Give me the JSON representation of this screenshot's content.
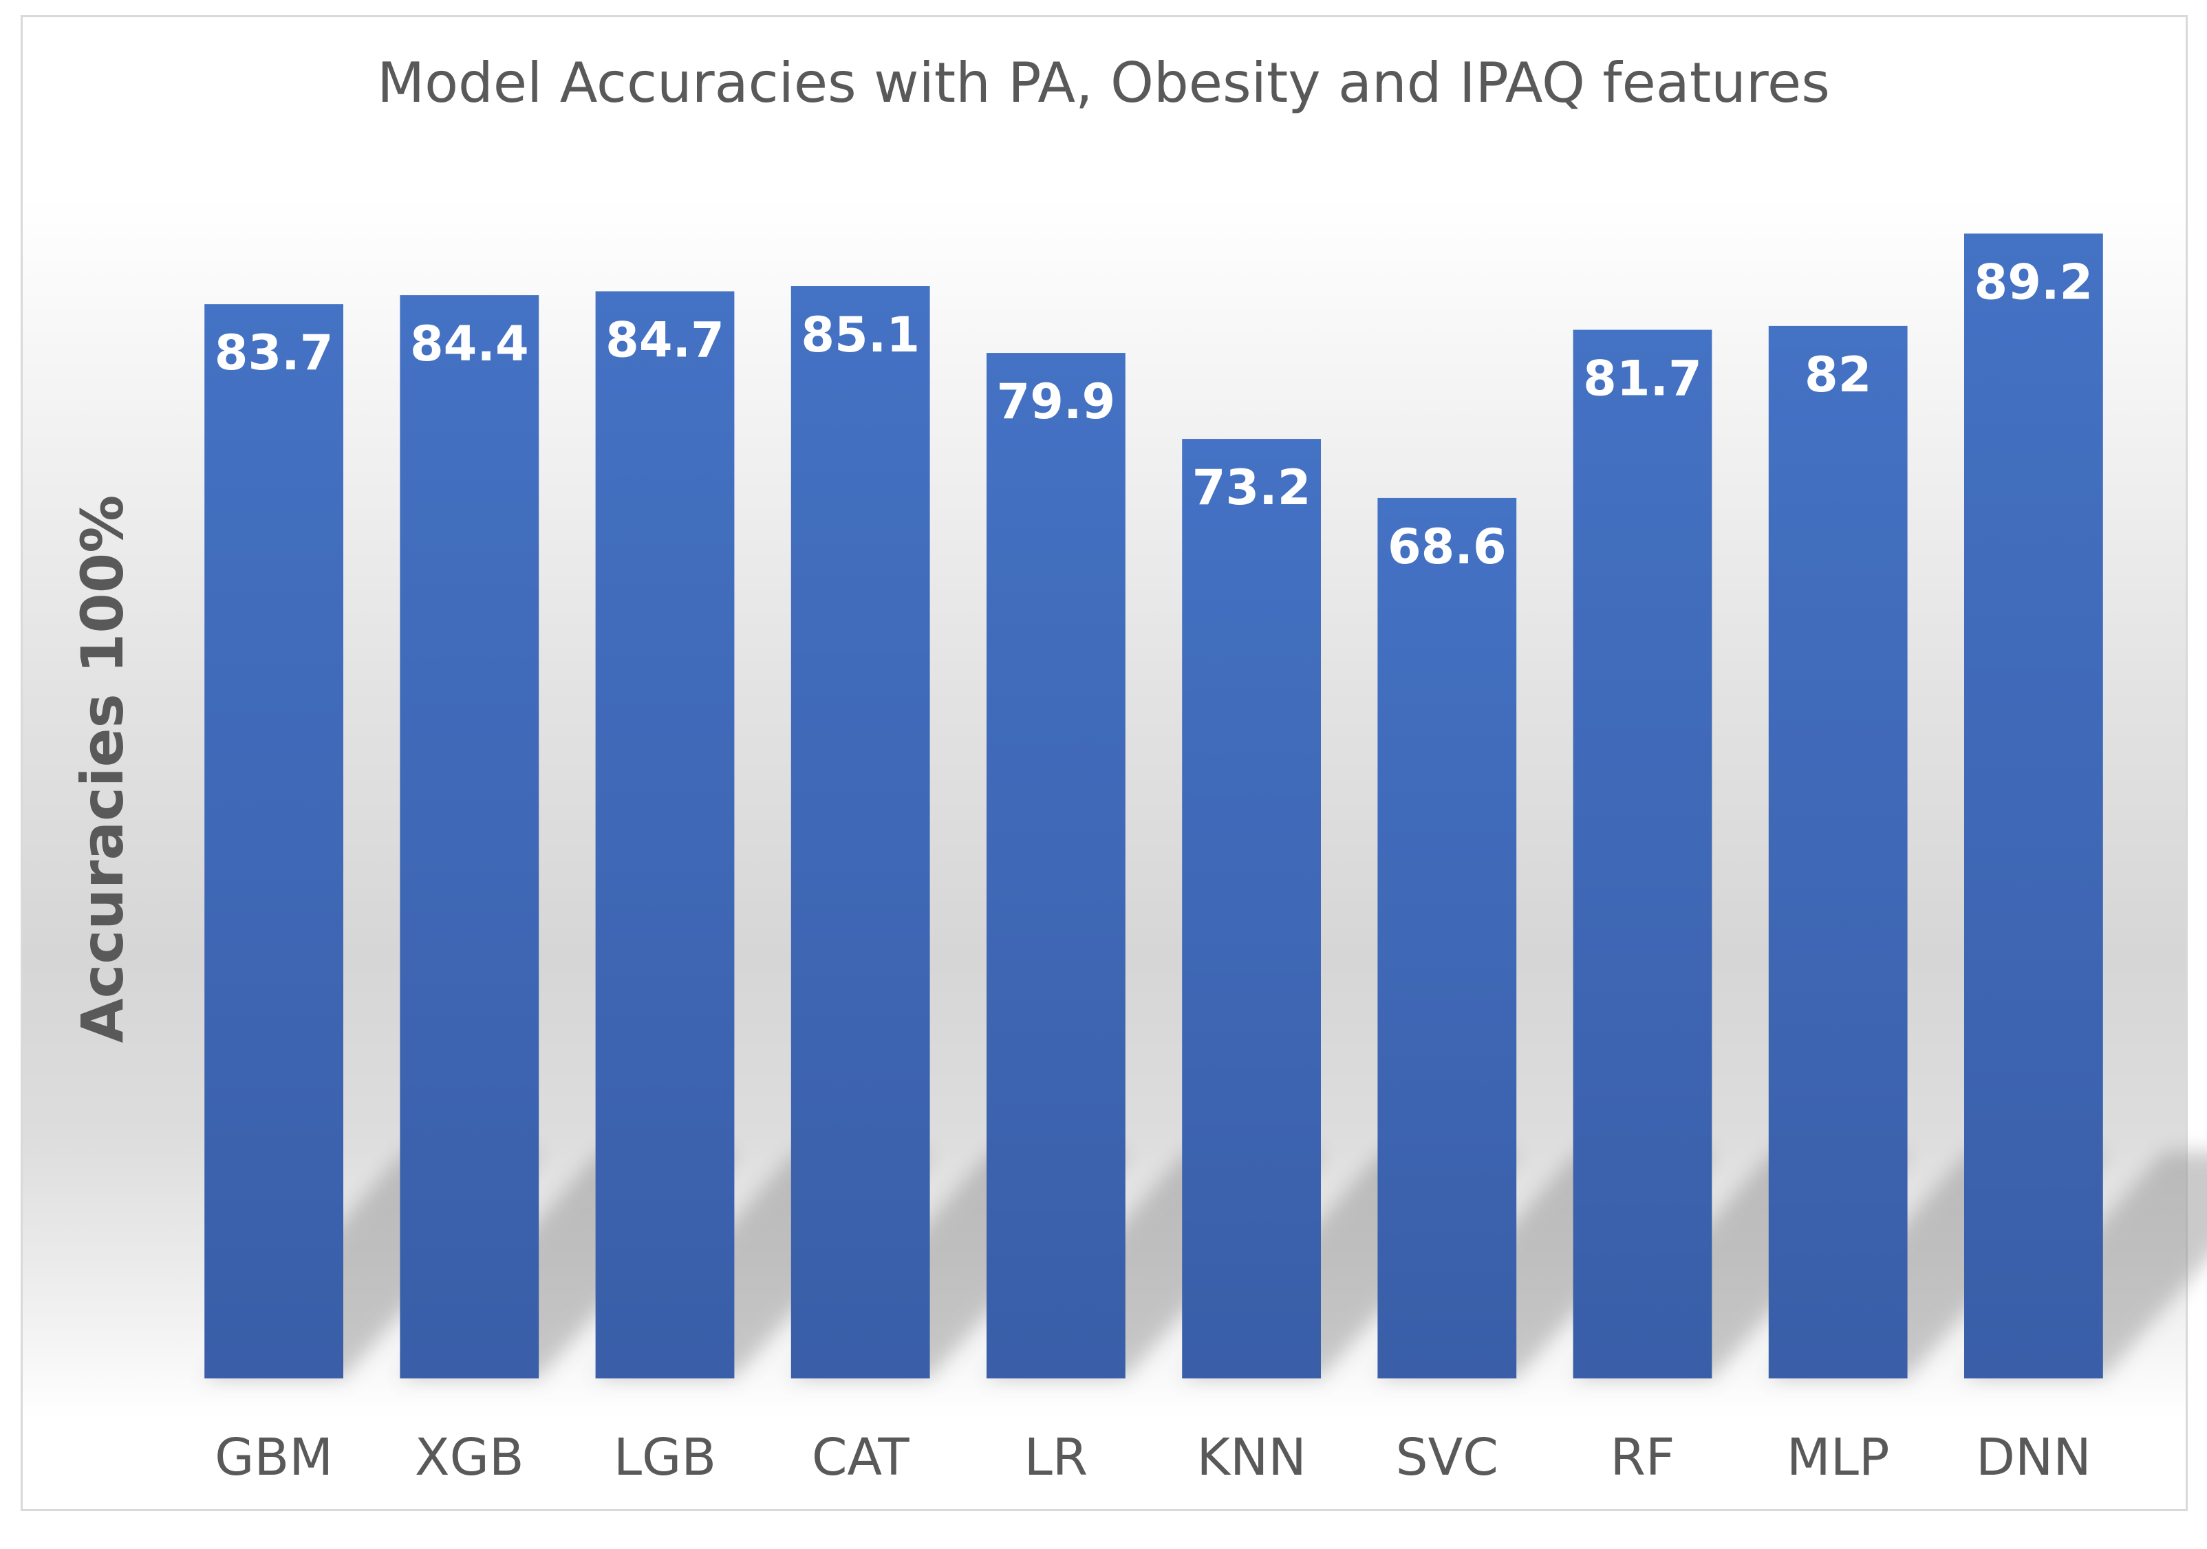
{
  "chart_data": {
    "type": "bar",
    "title": "Model Accuracies with PA, Obesity and IPAQ features",
    "xlabel": "",
    "ylabel": "Accuracies 100%",
    "categories": [
      "GBM",
      "XGB",
      "LGB",
      "CAT",
      "LR",
      "KNN",
      "SVC",
      "RF",
      "MLP",
      "DNN"
    ],
    "values": [
      83.7,
      84.4,
      84.7,
      85.1,
      79.9,
      73.2,
      68.6,
      81.7,
      82,
      89.2
    ],
    "value_labels": [
      "83.7",
      "84.4",
      "84.7",
      "85.1",
      "79.9",
      "73.2",
      "68.6",
      "81.7",
      "82",
      "89.2"
    ],
    "ylim": [
      0,
      100
    ],
    "grid": false,
    "legend": "none",
    "colors": {
      "bar_top": "#4472c4",
      "bar_bottom": "#3a5ea8",
      "label": "#ffffff",
      "axis_text": "#595959"
    }
  }
}
